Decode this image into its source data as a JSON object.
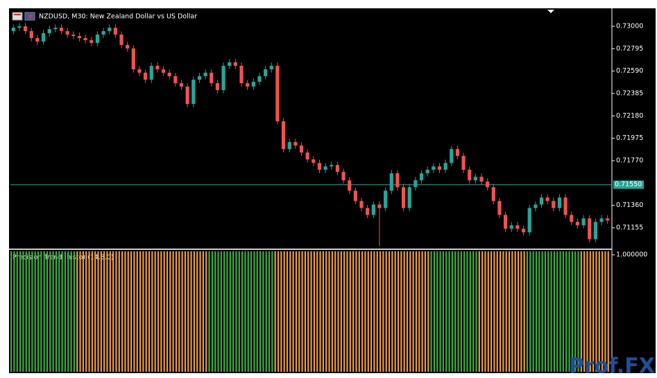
{
  "chart_data": [
    {
      "type": "candlestick",
      "title": "NZDUSD, M30:  New Zealand Dollar vs US Dollar",
      "up_color": "#26a69a",
      "down_color": "#ef5350",
      "open": [
        0.72956,
        0.72987,
        0.73,
        0.72956,
        0.72892,
        0.7286,
        0.72937,
        0.72975,
        0.72987,
        0.72956,
        0.72924,
        0.72911,
        0.72892,
        0.72873,
        0.72848,
        0.72924,
        0.72956,
        0.72987,
        0.72924,
        0.72829,
        0.72797,
        0.72606,
        0.72575,
        0.72511,
        0.72638,
        0.72606,
        0.72575,
        0.72543,
        0.72479,
        0.72448,
        0.72289,
        0.72511,
        0.72543,
        0.72575,
        0.72479,
        0.72416,
        0.72638,
        0.7267,
        0.72638,
        0.72479,
        0.72448,
        0.72492,
        0.72543,
        0.72606,
        0.72638,
        0.7213,
        0.71876,
        0.7194,
        0.71908,
        0.71844,
        0.71781,
        0.71749,
        0.71686,
        0.71717,
        0.7173,
        0.71667,
        0.7159,
        0.71495,
        0.714,
        0.71336,
        0.71273,
        0.71368,
        0.71336,
        0.71495,
        0.71654,
        0.71527,
        0.71336,
        0.71527,
        0.7159,
        0.71654,
        0.71686,
        0.71717,
        0.71686,
        0.71749,
        0.71876,
        0.71813,
        0.71686,
        0.7159,
        0.71622,
        0.71578,
        0.71527,
        0.714,
        0.71273,
        0.71146,
        0.71178,
        0.71146,
        0.71114,
        0.71336,
        0.71368,
        0.71432,
        0.714,
        0.71336,
        0.71432,
        0.71273,
        0.71209,
        0.71178,
        0.71241,
        0.71051,
        0.71209,
        0.71241
      ],
      "high": [
        0.73017,
        0.7303,
        0.7303,
        0.72986,
        0.72922,
        0.72967,
        0.73005,
        0.73017,
        0.73017,
        0.72986,
        0.72954,
        0.72941,
        0.72922,
        0.72903,
        0.72954,
        0.72986,
        0.73017,
        0.73017,
        0.72954,
        0.72859,
        0.72827,
        0.72636,
        0.72605,
        0.72668,
        0.72668,
        0.72636,
        0.72605,
        0.72573,
        0.72509,
        0.72478,
        0.72541,
        0.72573,
        0.72605,
        0.72605,
        0.72509,
        0.72668,
        0.727,
        0.727,
        0.72668,
        0.72509,
        0.72522,
        0.72573,
        0.72636,
        0.72668,
        0.72668,
        0.7216,
        0.7197,
        0.7197,
        0.71938,
        0.71874,
        0.71811,
        0.71779,
        0.71747,
        0.7176,
        0.7176,
        0.71697,
        0.7162,
        0.71525,
        0.7143,
        0.71366,
        0.71398,
        0.71398,
        0.71525,
        0.71684,
        0.71684,
        0.71557,
        0.71557,
        0.7162,
        0.71684,
        0.71716,
        0.71747,
        0.71747,
        0.71779,
        0.71906,
        0.71906,
        0.71843,
        0.71716,
        0.71652,
        0.71652,
        0.71608,
        0.71557,
        0.7143,
        0.71303,
        0.71208,
        0.71208,
        0.71176,
        0.71366,
        0.71398,
        0.71462,
        0.71462,
        0.7143,
        0.71462,
        0.71462,
        0.71303,
        0.71239,
        0.71271,
        0.71271,
        0.71239,
        0.71271,
        0.71271
      ],
      "low": [
        0.72926,
        0.72957,
        0.72926,
        0.72862,
        0.7283,
        0.7283,
        0.72907,
        0.72945,
        0.72926,
        0.72894,
        0.72881,
        0.72862,
        0.72843,
        0.72818,
        0.72818,
        0.72894,
        0.72926,
        0.72894,
        0.72799,
        0.72767,
        0.72576,
        0.72545,
        0.72481,
        0.72481,
        0.72576,
        0.72545,
        0.72513,
        0.72449,
        0.72418,
        0.72259,
        0.72259,
        0.72481,
        0.72513,
        0.72449,
        0.72386,
        0.72386,
        0.72608,
        0.72608,
        0.72449,
        0.72418,
        0.72418,
        0.72462,
        0.72513,
        0.72576,
        0.721,
        0.71846,
        0.71846,
        0.71878,
        0.71814,
        0.71751,
        0.71719,
        0.71656,
        0.71656,
        0.71687,
        0.71637,
        0.7156,
        0.71465,
        0.7137,
        0.71306,
        0.71243,
        0.71243,
        0.70987,
        0.71306,
        0.71465,
        0.71497,
        0.71306,
        0.71306,
        0.71497,
        0.7156,
        0.71624,
        0.71656,
        0.71656,
        0.71656,
        0.71719,
        0.71783,
        0.71656,
        0.7156,
        0.7156,
        0.71548,
        0.71497,
        0.7137,
        0.71243,
        0.71116,
        0.71116,
        0.71116,
        0.71084,
        0.71084,
        0.71306,
        0.71338,
        0.7137,
        0.71306,
        0.71306,
        0.71243,
        0.71179,
        0.71148,
        0.71148,
        0.71021,
        0.71021,
        0.71179,
        0.71192
      ],
      "close": [
        0.72987,
        0.73,
        0.72956,
        0.72892,
        0.7286,
        0.72937,
        0.72975,
        0.72987,
        0.72956,
        0.72924,
        0.72911,
        0.72892,
        0.72873,
        0.72848,
        0.72924,
        0.72956,
        0.72987,
        0.72924,
        0.72829,
        0.72797,
        0.72606,
        0.72575,
        0.72511,
        0.72638,
        0.72606,
        0.72575,
        0.72543,
        0.72479,
        0.72448,
        0.72289,
        0.72511,
        0.72543,
        0.72575,
        0.72479,
        0.72416,
        0.72638,
        0.7267,
        0.72638,
        0.72479,
        0.72448,
        0.72492,
        0.72543,
        0.72606,
        0.72638,
        0.7213,
        0.71876,
        0.7194,
        0.71908,
        0.71844,
        0.71781,
        0.71749,
        0.71686,
        0.71717,
        0.7173,
        0.71667,
        0.7159,
        0.71495,
        0.714,
        0.71336,
        0.71273,
        0.71368,
        0.71336,
        0.71495,
        0.71654,
        0.71527,
        0.71336,
        0.71527,
        0.7159,
        0.71654,
        0.71686,
        0.71717,
        0.71686,
        0.71749,
        0.71876,
        0.71813,
        0.71686,
        0.7159,
        0.71622,
        0.71578,
        0.71527,
        0.714,
        0.71273,
        0.71146,
        0.71178,
        0.71146,
        0.71114,
        0.71336,
        0.71368,
        0.71432,
        0.714,
        0.71336,
        0.71432,
        0.71273,
        0.71209,
        0.71178,
        0.71241,
        0.71051,
        0.71209,
        0.71241,
        0.71222
      ],
      "ylim": [
        0.70965,
        0.73152
      ],
      "yticks": [
        {
          "value": 0.73,
          "label": "0.73000"
        },
        {
          "value": 0.72795,
          "label": "0.72795"
        },
        {
          "value": 0.7259,
          "label": "0.72590"
        },
        {
          "value": 0.72385,
          "label": "0.72385"
        },
        {
          "value": 0.7218,
          "label": "0.72180"
        },
        {
          "value": 0.71975,
          "label": "0.71975"
        },
        {
          "value": 0.7177,
          "label": "0.71770"
        },
        {
          "value": 0.7136,
          "label": "0.71360"
        },
        {
          "value": 0.71155,
          "label": "0.71155"
        }
      ],
      "price_line": {
        "value": 0.7155,
        "label": "0.71550",
        "color": "#26a69a"
      }
    },
    {
      "type": "histogram",
      "title": "Precision Trend (histo) (14.3.0)",
      "values": [
        1,
        1,
        1,
        1,
        1,
        1,
        1,
        1,
        1,
        1,
        1,
        1,
        1,
        1,
        1,
        1,
        1,
        1,
        1,
        1,
        1,
        1,
        1,
        1,
        1,
        1,
        1,
        1,
        1,
        1,
        1,
        1,
        1,
        1,
        1,
        1,
        1,
        1,
        1,
        1,
        1,
        1,
        1,
        1,
        1,
        1,
        1,
        1,
        1,
        1,
        1,
        1,
        1,
        1,
        1,
        1,
        1,
        1,
        1,
        1,
        1,
        1,
        1,
        1,
        1,
        1,
        1,
        1,
        1,
        1,
        1,
        1,
        1,
        1,
        1,
        1,
        1,
        1,
        1,
        1,
        1,
        1,
        1,
        1,
        1,
        1,
        1,
        1,
        1,
        1,
        1,
        1,
        1,
        1,
        1,
        1,
        1,
        1,
        1,
        1
      ],
      "colors": [
        "#3cb043",
        "#3cb043",
        "#3cb043",
        "#3cb043",
        "#3cb043",
        "#3cb043",
        "#3cb043",
        "#3cb043",
        "#3cb043",
        "#3cb043",
        "#3cb043",
        "#f0a040",
        "#f0a040",
        "#f0a040",
        "#f0a040",
        "#f0a040",
        "#f0a040",
        "#f0a040",
        "#f0a040",
        "#f0a040",
        "#f0a040",
        "#f0a040",
        "#f0a040",
        "#f0a040",
        "#f0a040",
        "#f0a040",
        "#f0a040",
        "#f0a040",
        "#f0a040",
        "#f0a040",
        "#f0a040",
        "#f0a040",
        "#f0a040",
        "#3cb043",
        "#3cb043",
        "#3cb043",
        "#3cb043",
        "#3cb043",
        "#3cb043",
        "#3cb043",
        "#3cb043",
        "#3cb043",
        "#3cb043",
        "#3cb043",
        "#f0a040",
        "#f0a040",
        "#f0a040",
        "#f0a040",
        "#f0a040",
        "#f0a040",
        "#f0a040",
        "#f0a040",
        "#f0a040",
        "#f0a040",
        "#f0a040",
        "#f0a040",
        "#f0a040",
        "#f0a040",
        "#f0a040",
        "#f0a040",
        "#f0a040",
        "#f0a040",
        "#f0a040",
        "#f0a040",
        "#f0a040",
        "#f0a040",
        "#f0a040",
        "#f0a040",
        "#f0a040",
        "#f0a040",
        "#3cb043",
        "#3cb043",
        "#3cb043",
        "#3cb043",
        "#3cb043",
        "#3cb043",
        "#3cb043",
        "#3cb043",
        "#f0a040",
        "#f0a040",
        "#f0a040",
        "#f0a040",
        "#f0a040",
        "#f0a040",
        "#f0a040",
        "#f0a040",
        "#3cb043",
        "#3cb043",
        "#3cb043",
        "#3cb043",
        "#3cb043",
        "#3cb043",
        "#3cb043",
        "#3cb043",
        "#3cb043",
        "#f0a040",
        "#f0a040",
        "#f0a040",
        "#f0a040",
        "#f0a040"
      ],
      "ylim": [
        0,
        1
      ],
      "yticks": [
        {
          "value": 1,
          "label": "1.000000"
        }
      ]
    }
  ],
  "watermark": "Prof.FX"
}
